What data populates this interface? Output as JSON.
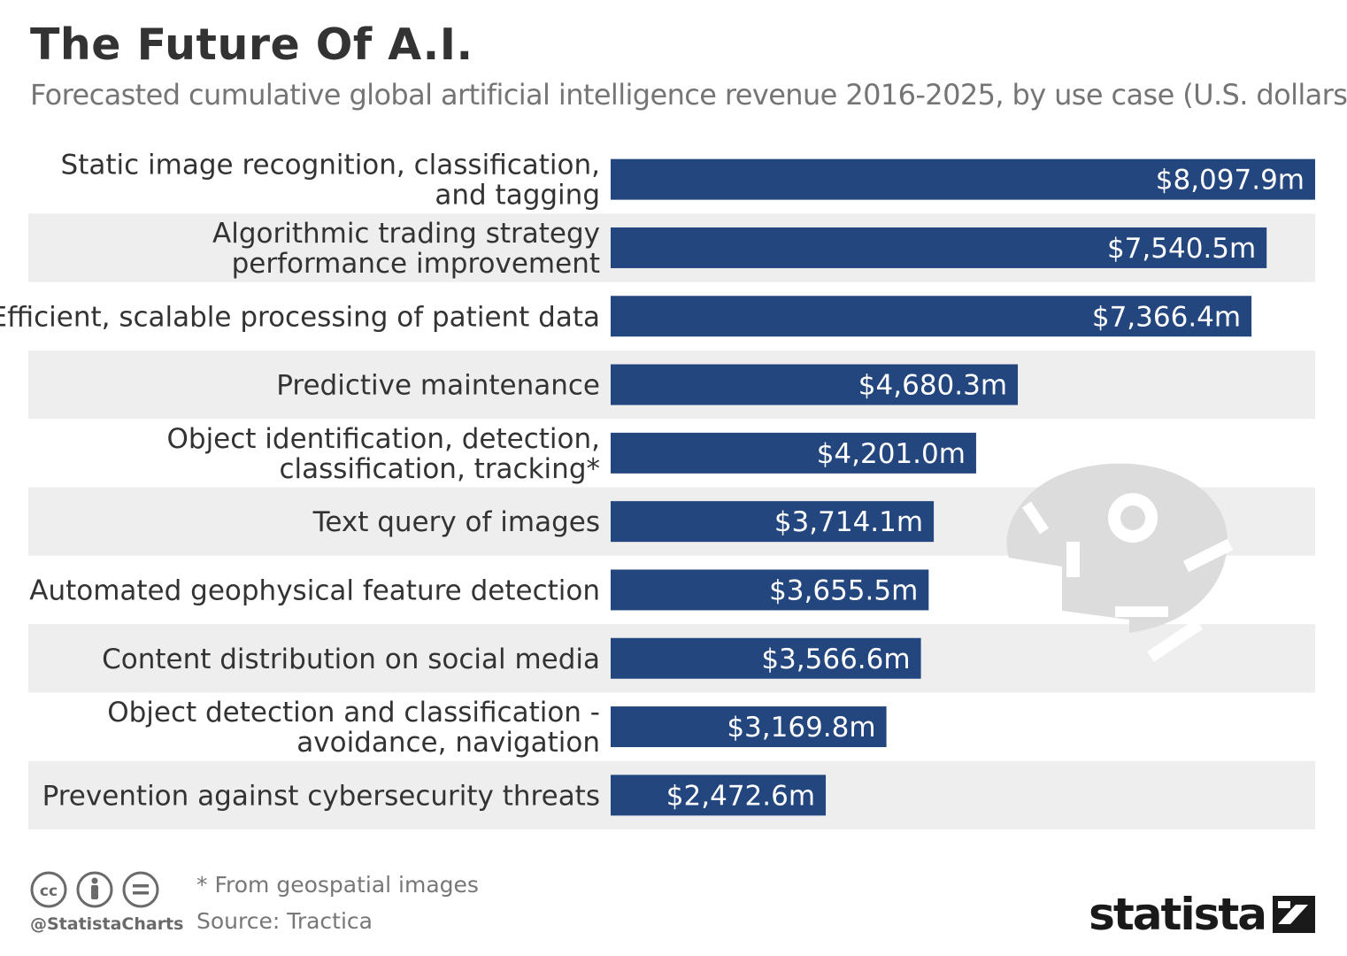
{
  "header": {
    "title": "The Future Of A.I.",
    "subtitle": "Forecasted cumulative global artificial intelligence revenue 2016-2025, by use case (U.S. dollars)"
  },
  "chart_data": {
    "type": "bar",
    "orientation": "horizontal",
    "title": "The Future Of A.I.",
    "subtitle": "Forecasted cumulative global artificial intelligence revenue 2016-2025, by use case (U.S. dollars)",
    "categories": [
      [
        "Static image recognition, classification,",
        "and tagging"
      ],
      [
        "Algorithmic trading strategy",
        "performance improvement"
      ],
      [
        "Efficient, scalable processing of patient data"
      ],
      [
        "Predictive maintenance"
      ],
      [
        "Object identification, detection,",
        "classification, tracking*"
      ],
      [
        "Text query of images"
      ],
      [
        "Automated geophysical feature detection"
      ],
      [
        "Content distribution on social media"
      ],
      [
        "Object detection and classification -",
        "avoidance, navigation"
      ],
      [
        "Prevention against cybersecurity threats"
      ]
    ],
    "values": [
      8097.9,
      7540.5,
      7366.4,
      4680.3,
      4201.0,
      3714.1,
      3655.5,
      3566.6,
      3169.8,
      2472.6
    ],
    "value_labels": [
      "$8,097.9m",
      "$7,540.5m",
      "$7,366.4m",
      "$4,680.3m",
      "$4,201.0m",
      "$3,714.1m",
      "$3,655.5m",
      "$3,566.6m",
      "$3,169.8m",
      "$2,472.6m"
    ],
    "xlim": [
      0,
      8097.9
    ],
    "grid": false,
    "legend": "none",
    "colors": {
      "bar": "#23467e",
      "stripe": "#eeeeee",
      "label_text": "#333333",
      "value_text": "#ffffff",
      "watermark": "#dcdcdc"
    }
  },
  "footer": {
    "footnote": "* From geospatial images",
    "source": "Source: Tractica",
    "handle": "@StatistaCharts",
    "brand": "statista",
    "license_icons": [
      "cc-icon",
      "attribution-icon",
      "no-derivatives-icon"
    ],
    "license_glyphs": [
      "cc",
      "i",
      "="
    ]
  }
}
